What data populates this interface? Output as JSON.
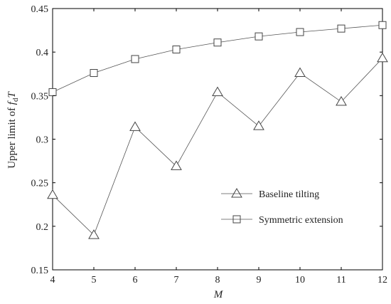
{
  "chart_data": {
    "type": "line",
    "xlabel": "M",
    "ylabel": "Upper limit of f_d T",
    "ylabel_parts": {
      "prefix": "Upper limit of ",
      "var": "f",
      "sub": "d",
      "suffix": "T"
    },
    "x": [
      4,
      5,
      6,
      7,
      8,
      9,
      10,
      11,
      12
    ],
    "xlim": [
      4,
      12
    ],
    "ylim": [
      0.15,
      0.45
    ],
    "x_ticks": [
      4,
      5,
      6,
      7,
      8,
      9,
      10,
      11,
      12
    ],
    "x_tick_labels": [
      "4",
      "5",
      "6",
      "7",
      "8",
      "9",
      "10",
      "11",
      "12"
    ],
    "y_ticks": [
      0.15,
      0.2,
      0.25,
      0.3,
      0.35,
      0.4,
      0.45
    ],
    "y_tick_labels": [
      "0.15",
      "0.2",
      "0.25",
      "0.3",
      "0.35",
      "0.4",
      "0.45"
    ],
    "grid": false,
    "legend_position": "middle-right",
    "series": [
      {
        "name": "Baseline tilting",
        "marker": "triangle",
        "values": [
          0.236,
          0.19,
          0.314,
          0.269,
          0.354,
          0.315,
          0.376,
          0.343,
          0.393
        ]
      },
      {
        "name": "Symmetric extension",
        "marker": "square",
        "values": [
          0.354,
          0.376,
          0.392,
          0.403,
          0.411,
          0.418,
          0.423,
          0.427,
          0.431
        ]
      }
    ],
    "colors": {
      "line": "#555555",
      "marker_stroke": "#444444",
      "axis": "#000000"
    }
  }
}
